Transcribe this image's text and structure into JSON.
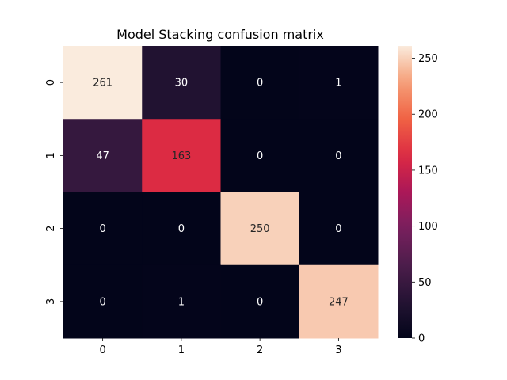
{
  "chart_data": {
    "type": "heatmap",
    "title": "Model Stacking confusion matrix",
    "xlabel": "",
    "ylabel": "",
    "x_categories": [
      "0",
      "1",
      "2",
      "3"
    ],
    "y_categories": [
      "0",
      "1",
      "2",
      "3"
    ],
    "values": [
      [
        261,
        30,
        0,
        1
      ],
      [
        47,
        163,
        0,
        0
      ],
      [
        0,
        0,
        250,
        0
      ],
      [
        0,
        1,
        0,
        247
      ]
    ],
    "colorbar": {
      "min": 0,
      "max": 261,
      "ticks": [
        0,
        50,
        100,
        150,
        200,
        250
      ],
      "colormap": "rocket"
    }
  }
}
